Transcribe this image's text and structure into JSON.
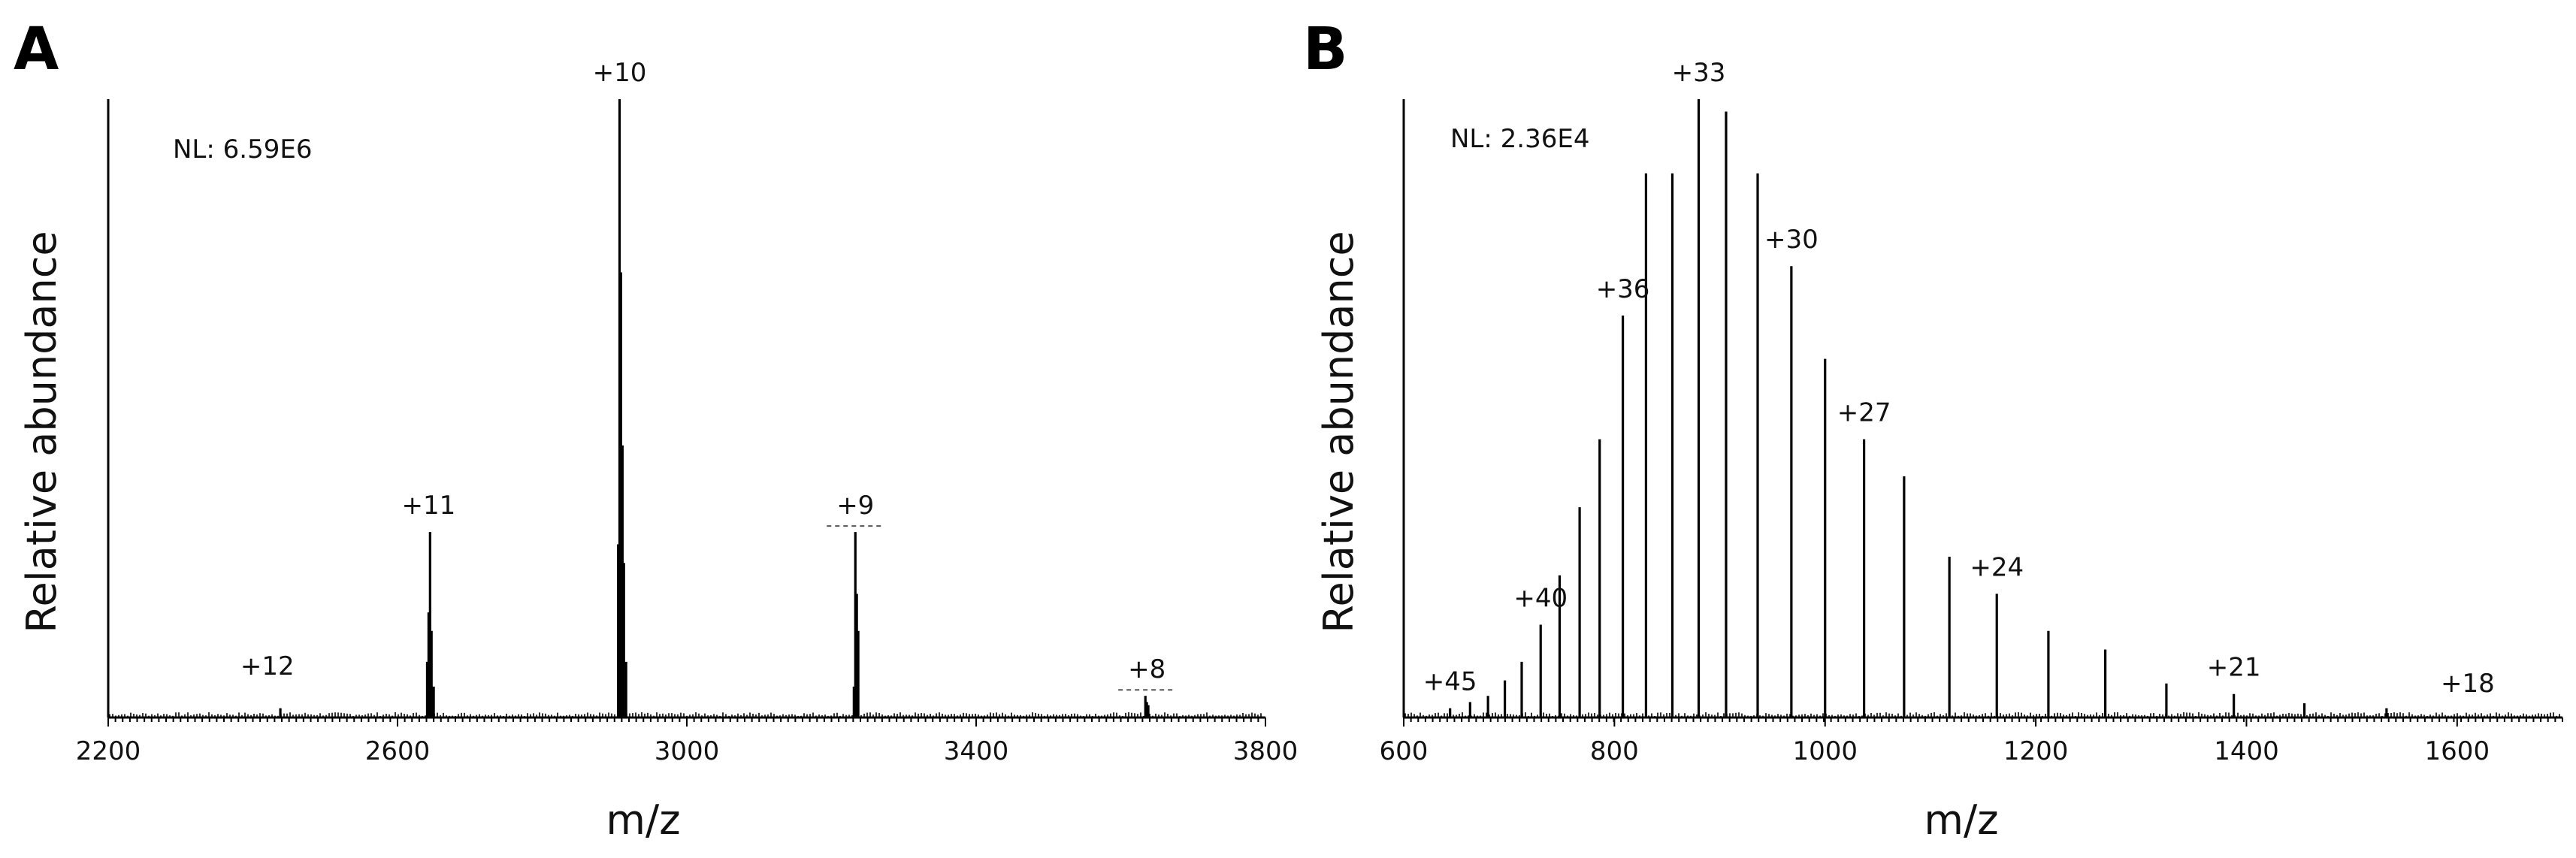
{
  "chart_data": [
    {
      "type": "bar",
      "panel": "A",
      "xlabel": "m/z",
      "ylabel": "Relative abundance",
      "annotation": "NL: 6.59E6",
      "xlim": [
        2200,
        3800
      ],
      "ylim": [
        0,
        100
      ],
      "xticks": [
        2200,
        2600,
        3000,
        3400,
        3800
      ],
      "grid": false,
      "legend": "none",
      "peaks": {
        "x": [
          2438,
          2641,
          2643,
          2645,
          2647,
          2650,
          2905,
          2907,
          2909,
          2911,
          2913,
          2916,
          3231,
          3233,
          3235,
          3237,
          3634,
          3636,
          3638
        ],
        "y": [
          1.5,
          9,
          17,
          30,
          14,
          5,
          28,
          100,
          72,
          44,
          25,
          9,
          5,
          30,
          20,
          14,
          3.5,
          2.5,
          2
        ]
      },
      "charge_labels": [
        {
          "text": "+12",
          "x": 2420,
          "y": 4
        },
        {
          "text": "+11",
          "x": 2643,
          "y": 30
        },
        {
          "text": "+10",
          "x": 2907,
          "y": 100
        },
        {
          "text": "+9",
          "x": 3233,
          "y": 30
        },
        {
          "text": "+8",
          "x": 3636,
          "y": 3.5
        }
      ]
    },
    {
      "type": "bar",
      "panel": "B",
      "xlabel": "m/z",
      "ylabel": "Relative abundance",
      "annotation": "NL: 2.36E4",
      "xlim": [
        600,
        1700
      ],
      "ylim": [
        0,
        100
      ],
      "xticks": [
        600,
        800,
        1000,
        1200,
        1400,
        1600
      ],
      "grid": false,
      "legend": "none",
      "peaks": {
        "x": [
          644,
          663,
          680,
          696,
          712,
          730,
          748,
          767,
          786,
          808,
          830,
          855,
          880,
          906,
          936,
          968,
          1000,
          1037,
          1075,
          1118,
          1163,
          1212,
          1266,
          1324,
          1388,
          1455,
          1533
        ],
        "y": [
          1.5,
          2.5,
          3.5,
          6,
          9,
          15,
          23,
          34,
          45,
          65,
          88,
          88,
          100,
          98,
          88,
          73,
          58,
          45,
          39,
          26,
          20,
          14,
          11,
          5.5,
          3.8,
          2.3,
          1.5
        ]
      },
      "charge_labels": [
        {
          "text": "+45",
          "x": 644,
          "y": 1.5
        },
        {
          "text": "+40",
          "x": 730,
          "y": 15
        },
        {
          "text": "+36",
          "x": 808,
          "y": 65
        },
        {
          "text": "+33",
          "x": 880,
          "y": 100
        },
        {
          "text": "+30",
          "x": 968,
          "y": 73
        },
        {
          "text": "+27",
          "x": 1037,
          "y": 45
        },
        {
          "text": "+24",
          "x": 1163,
          "y": 20
        },
        {
          "text": "+21",
          "x": 1388,
          "y": 3.8
        },
        {
          "text": "+18",
          "x": 1610,
          "y": 1.2
        }
      ]
    }
  ]
}
